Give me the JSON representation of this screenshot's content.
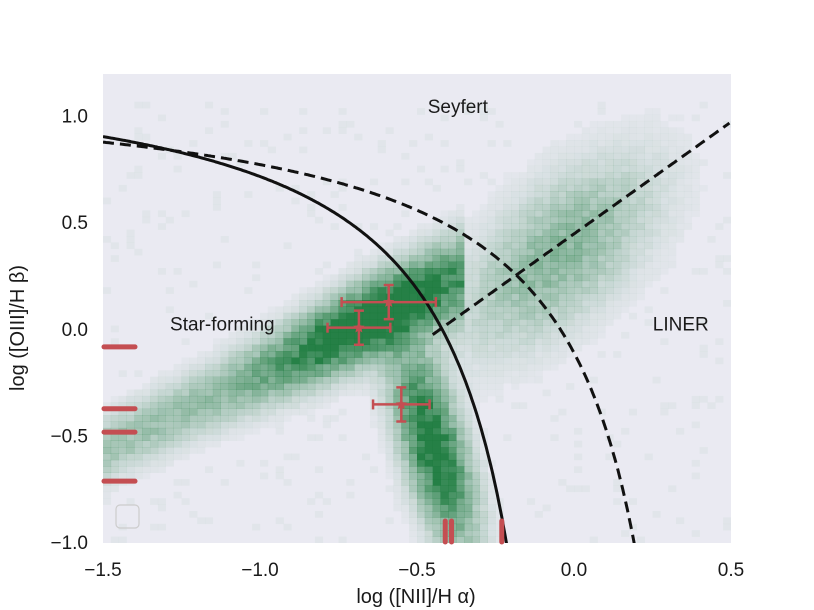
{
  "chart_data": {
    "type": "scatter",
    "xlabel": "log ([NII]/H α)",
    "ylabel": "log ([OIII]/H β)",
    "xlim": [
      -1.5,
      0.5
    ],
    "ylim": [
      -1.0,
      1.2
    ],
    "grid": false,
    "xticks": [
      -1.5,
      -1.0,
      -0.5,
      0.0,
      0.5
    ],
    "xtick_labels": [
      "−1.5",
      "−1.0",
      "−0.5",
      "0.0",
      "0.5"
    ],
    "yticks": [
      -1.0,
      -0.5,
      0.0,
      0.5,
      1.0
    ],
    "ytick_labels": [
      "−1.0",
      "−0.5",
      "0.0",
      "0.5",
      "1.0"
    ],
    "background_color": "#eaeaf2",
    "density_color": "#1a7a3c",
    "marker_color": "#c44e52",
    "line_color": "#111111",
    "region_labels": [
      {
        "text": "Seyfert",
        "x": -0.37,
        "y": 1.04
      },
      {
        "text": "Star-forming",
        "x": -1.12,
        "y": 0.02
      },
      {
        "text": "LINER",
        "x": 0.34,
        "y": 0.02
      }
    ],
    "points": [
      {
        "x": -0.59,
        "y": 0.13,
        "xerr": 0.15,
        "yerr": 0.08
      },
      {
        "x": -0.685,
        "y": 0.01,
        "xerr": 0.1,
        "yerr": 0.08
      },
      {
        "x": -0.55,
        "y": -0.35,
        "xerr": 0.09,
        "yerr": 0.08
      }
    ],
    "y_only_markers": [
      -0.08,
      -0.37,
      -0.48,
      -0.71
    ],
    "x_only_markers": [
      -0.41,
      -0.39,
      -0.23
    ],
    "demarcation_lines": [
      {
        "name": "",
        "style": "solid",
        "formula": "0.61/(x-0.05)+1.3",
        "x_max": 0.05
      },
      {
        "name": "",
        "style": "dashed",
        "formula": "0.61/(x-0.47)+1.19",
        "x_max": 0.47
      },
      {
        "name": "",
        "style": "dashed",
        "formula": "1.05*x+0.45",
        "x_min": -0.45
      }
    ]
  }
}
